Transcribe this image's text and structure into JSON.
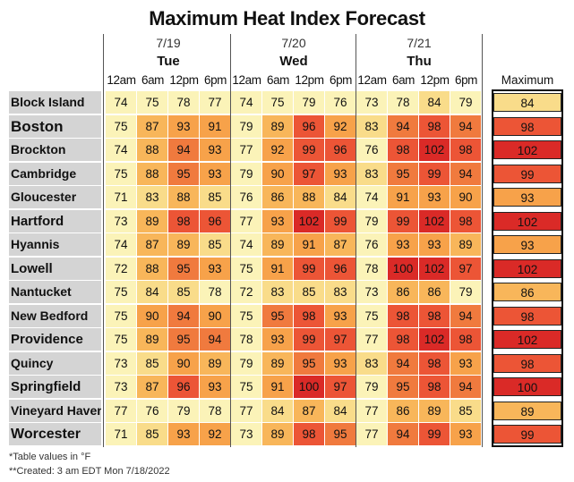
{
  "chart_data": {
    "type": "table",
    "title": "Maximum Heat Index Forecast",
    "days": [
      {
        "date": "7/19",
        "name": "Tue"
      },
      {
        "date": "7/20",
        "name": "Wed"
      },
      {
        "date": "7/21",
        "name": "Thu"
      }
    ],
    "time_labels": [
      "12am",
      "6am",
      "12pm",
      "6pm"
    ],
    "max_header": "Maximum",
    "rows": [
      {
        "city": "Block Island",
        "values": [
          74,
          75,
          78,
          77,
          74,
          75,
          79,
          76,
          73,
          78,
          84,
          79
        ],
        "max": 84
      },
      {
        "city": "Boston",
        "values": [
          75,
          87,
          93,
          91,
          79,
          89,
          96,
          92,
          83,
          94,
          98,
          94
        ],
        "max": 98
      },
      {
        "city": "Brockton",
        "values": [
          74,
          88,
          94,
          93,
          77,
          92,
          99,
          96,
          76,
          98,
          102,
          98
        ],
        "max": 102
      },
      {
        "city": "Cambridge",
        "values": [
          75,
          88,
          95,
          93,
          79,
          90,
          97,
          93,
          83,
          95,
          99,
          94
        ],
        "max": 99
      },
      {
        "city": "Gloucester",
        "values": [
          71,
          83,
          88,
          85,
          76,
          86,
          88,
          84,
          74,
          91,
          93,
          90
        ],
        "max": 93
      },
      {
        "city": "Hartford",
        "values": [
          73,
          89,
          98,
          96,
          77,
          93,
          102,
          99,
          79,
          99,
          102,
          98
        ],
        "max": 102
      },
      {
        "city": "Hyannis",
        "values": [
          74,
          87,
          89,
          85,
          74,
          89,
          91,
          87,
          76,
          93,
          93,
          89
        ],
        "max": 93
      },
      {
        "city": "Lowell",
        "values": [
          72,
          88,
          95,
          93,
          75,
          91,
          99,
          96,
          78,
          100,
          102,
          97
        ],
        "max": 102
      },
      {
        "city": "Nantucket",
        "values": [
          75,
          84,
          85,
          78,
          72,
          83,
          85,
          83,
          73,
          86,
          86,
          79
        ],
        "max": 86
      },
      {
        "city": "New Bedford",
        "values": [
          75,
          90,
          94,
          90,
          75,
          95,
          98,
          93,
          75,
          98,
          98,
          94
        ],
        "max": 98
      },
      {
        "city": "Providence",
        "values": [
          75,
          89,
          95,
          94,
          78,
          93,
          99,
          97,
          77,
          98,
          102,
          98
        ],
        "max": 102
      },
      {
        "city": "Quincy",
        "values": [
          73,
          85,
          90,
          89,
          79,
          89,
          95,
          93,
          83,
          94,
          98,
          93
        ],
        "max": 98
      },
      {
        "city": "Springfield",
        "values": [
          73,
          87,
          96,
          93,
          75,
          91,
          100,
          97,
          79,
          95,
          98,
          94
        ],
        "max": 100
      },
      {
        "city": "Vineyard Haven",
        "values": [
          77,
          76,
          79,
          78,
          77,
          84,
          87,
          84,
          77,
          86,
          89,
          85
        ],
        "max": 89
      },
      {
        "city": "Worcester",
        "values": [
          71,
          85,
          93,
          92,
          73,
          89,
          98,
          95,
          77,
          94,
          99,
          93
        ],
        "max": 99
      }
    ],
    "footnotes": [
      "*Table values in °F",
      "**Created: 3 am EDT Mon 7/18/2022"
    ],
    "color_scale": [
      {
        "min": 0,
        "color": "#fbf3b8"
      },
      {
        "min": 80,
        "color": "#f9dc8a"
      },
      {
        "min": 86,
        "color": "#f8b65a"
      },
      {
        "min": 90,
        "color": "#f7a24a"
      },
      {
        "min": 94,
        "color": "#f07a3e"
      },
      {
        "min": 96,
        "color": "#ec5536"
      },
      {
        "min": 100,
        "color": "#da2a27"
      }
    ]
  }
}
